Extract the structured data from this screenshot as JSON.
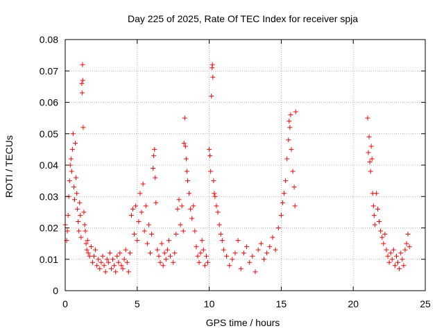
{
  "chart_data": {
    "type": "scatter",
    "title": "Day 225 of 2025, Rate Of TEC Index for receiver spja",
    "xlabel": "GPS time / hours",
    "ylabel": "ROTI / TECUs",
    "xlim": [
      0,
      25
    ],
    "ylim": [
      0,
      0.08
    ],
    "xticks": [
      0,
      5,
      10,
      15,
      20,
      25
    ],
    "xtick_labels": [
      "0",
      "5",
      "10",
      "15",
      "20",
      "25"
    ],
    "yticks": [
      0,
      0.01,
      0.02,
      0.03,
      0.04,
      0.05,
      0.06,
      0.07,
      0.08
    ],
    "ytick_labels": [
      "0",
      "0.01",
      "0.02",
      "0.03",
      "0.04",
      "0.05",
      "0.06",
      "0.07",
      "0.08"
    ],
    "grid": true,
    "marker": "+",
    "color": "#ff0000",
    "series": [
      {
        "name": "ROTI",
        "points": [
          [
            0.0,
            0.021
          ],
          [
            0.1,
            0.016
          ],
          [
            0.15,
            0.019
          ],
          [
            0.2,
            0.024
          ],
          [
            0.25,
            0.03
          ],
          [
            0.3,
            0.035
          ],
          [
            0.35,
            0.04
          ],
          [
            0.4,
            0.042
          ],
          [
            0.45,
            0.038
          ],
          [
            0.5,
            0.045
          ],
          [
            0.55,
            0.05
          ],
          [
            0.6,
            0.033
          ],
          [
            0.65,
            0.029
          ],
          [
            0.7,
            0.047
          ],
          [
            0.75,
            0.036
          ],
          [
            0.8,
            0.031
          ],
          [
            0.85,
            0.026
          ],
          [
            0.9,
            0.022
          ],
          [
            0.95,
            0.019
          ],
          [
            1.0,
            0.028
          ],
          [
            1.05,
            0.024
          ],
          [
            1.1,
            0.017
          ],
          [
            1.15,
            0.066
          ],
          [
            1.17,
            0.063
          ],
          [
            1.2,
            0.072
          ],
          [
            1.22,
            0.067
          ],
          [
            1.25,
            0.052
          ],
          [
            1.3,
            0.025
          ],
          [
            1.35,
            0.021
          ],
          [
            1.4,
            0.019
          ],
          [
            1.45,
            0.015
          ],
          [
            1.5,
            0.013
          ],
          [
            1.55,
            0.016
          ],
          [
            1.6,
            0.012
          ],
          [
            1.7,
            0.011
          ],
          [
            1.8,
            0.014
          ],
          [
            1.9,
            0.009
          ],
          [
            2.0,
            0.011
          ],
          [
            2.1,
            0.013
          ],
          [
            2.2,
            0.008
          ],
          [
            2.3,
            0.01
          ],
          [
            2.4,
            0.007
          ],
          [
            2.5,
            0.009
          ],
          [
            2.6,
            0.011
          ],
          [
            2.7,
            0.008
          ],
          [
            2.8,
            0.006
          ],
          [
            2.9,
            0.01
          ],
          [
            3.0,
            0.009
          ],
          [
            3.1,
            0.012
          ],
          [
            3.2,
            0.007
          ],
          [
            3.3,
            0.01
          ],
          [
            3.4,
            0.008
          ],
          [
            3.5,
            0.006
          ],
          [
            3.6,
            0.011
          ],
          [
            3.7,
            0.009
          ],
          [
            3.8,
            0.012
          ],
          [
            3.9,
            0.008
          ],
          [
            4.0,
            0.007
          ],
          [
            4.1,
            0.01
          ],
          [
            4.2,
            0.013
          ],
          [
            4.3,
            0.009
          ],
          [
            4.4,
            0.006
          ],
          [
            4.5,
            0.012
          ],
          [
            4.6,
            0.024
          ],
          [
            4.7,
            0.026
          ],
          [
            4.8,
            0.018
          ],
          [
            4.9,
            0.027
          ],
          [
            5.0,
            0.016
          ],
          [
            5.1,
            0.022
          ],
          [
            5.2,
            0.031
          ],
          [
            5.3,
            0.025
          ],
          [
            5.4,
            0.034
          ],
          [
            5.5,
            0.019
          ],
          [
            5.6,
            0.027
          ],
          [
            5.7,
            0.015
          ],
          [
            5.8,
            0.021
          ],
          [
            5.9,
            0.012
          ],
          [
            6.0,
            0.018
          ],
          [
            6.1,
            0.039
          ],
          [
            6.15,
            0.043
          ],
          [
            6.2,
            0.045
          ],
          [
            6.25,
            0.036
          ],
          [
            6.3,
            0.028
          ],
          [
            6.4,
            0.013
          ],
          [
            6.5,
            0.011
          ],
          [
            6.6,
            0.009
          ],
          [
            6.7,
            0.015
          ],
          [
            6.8,
            0.008
          ],
          [
            6.9,
            0.012
          ],
          [
            7.0,
            0.01
          ],
          [
            7.1,
            0.013
          ],
          [
            7.2,
            0.016
          ],
          [
            7.3,
            0.011
          ],
          [
            7.5,
            0.009
          ],
          [
            7.6,
            0.012
          ],
          [
            7.7,
            0.018
          ],
          [
            7.8,
            0.026
          ],
          [
            7.9,
            0.029
          ],
          [
            8.0,
            0.021
          ],
          [
            8.1,
            0.027
          ],
          [
            8.2,
            0.019
          ],
          [
            8.25,
            0.047
          ],
          [
            8.3,
            0.055
          ],
          [
            8.35,
            0.046
          ],
          [
            8.4,
            0.042
          ],
          [
            8.45,
            0.038
          ],
          [
            8.5,
            0.035
          ],
          [
            8.6,
            0.031
          ],
          [
            8.7,
            0.026
          ],
          [
            8.8,
            0.023
          ],
          [
            8.9,
            0.027
          ],
          [
            9.0,
            0.019
          ],
          [
            9.1,
            0.014
          ],
          [
            9.2,
            0.011
          ],
          [
            9.3,
            0.009
          ],
          [
            9.4,
            0.012
          ],
          [
            9.5,
            0.016
          ],
          [
            9.6,
            0.013
          ],
          [
            9.7,
            0.008
          ],
          [
            9.8,
            0.011
          ],
          [
            9.9,
            0.009
          ],
          [
            10.0,
            0.045
          ],
          [
            10.05,
            0.043
          ],
          [
            10.1,
            0.038
          ],
          [
            10.15,
            0.062
          ],
          [
            10.2,
            0.071
          ],
          [
            10.22,
            0.072
          ],
          [
            10.25,
            0.068
          ],
          [
            10.3,
            0.035
          ],
          [
            10.35,
            0.031
          ],
          [
            10.4,
            0.03
          ],
          [
            10.5,
            0.027
          ],
          [
            10.6,
            0.025
          ],
          [
            10.7,
            0.021
          ],
          [
            10.8,
            0.018
          ],
          [
            10.9,
            0.016
          ],
          [
            11.0,
            0.013
          ],
          [
            11.2,
            0.011
          ],
          [
            11.4,
            0.008
          ],
          [
            11.6,
            0.01
          ],
          [
            11.8,
            0.012
          ],
          [
            12.0,
            0.016
          ],
          [
            12.2,
            0.007
          ],
          [
            12.4,
            0.012
          ],
          [
            12.6,
            0.014
          ],
          [
            12.8,
            0.009
          ],
          [
            13.0,
            0.011
          ],
          [
            13.2,
            0.006
          ],
          [
            13.4,
            0.013
          ],
          [
            13.6,
            0.015
          ],
          [
            13.8,
            0.01
          ],
          [
            14.0,
            0.012
          ],
          [
            14.2,
            0.014
          ],
          [
            14.4,
            0.017
          ],
          [
            14.6,
            0.013
          ],
          [
            14.8,
            0.02
          ],
          [
            15.0,
            0.024
          ],
          [
            15.1,
            0.028
          ],
          [
            15.2,
            0.031
          ],
          [
            15.3,
            0.035
          ],
          [
            15.4,
            0.042
          ],
          [
            15.5,
            0.048
          ],
          [
            15.55,
            0.054
          ],
          [
            15.6,
            0.052
          ],
          [
            15.65,
            0.056
          ],
          [
            15.7,
            0.045
          ],
          [
            15.8,
            0.038
          ],
          [
            15.9,
            0.033
          ],
          [
            15.95,
            0.027
          ],
          [
            16.0,
            0.057
          ],
          [
            21.0,
            0.055
          ],
          [
            21.05,
            0.044
          ],
          [
            21.1,
            0.049
          ],
          [
            21.15,
            0.041
          ],
          [
            21.2,
            0.038
          ],
          [
            21.25,
            0.046
          ],
          [
            21.3,
            0.042
          ],
          [
            21.35,
            0.031
          ],
          [
            21.4,
            0.027
          ],
          [
            21.45,
            0.024
          ],
          [
            21.5,
            0.021
          ],
          [
            21.6,
            0.031
          ],
          [
            21.7,
            0.026
          ],
          [
            21.8,
            0.022
          ],
          [
            21.9,
            0.019
          ],
          [
            22.0,
            0.017
          ],
          [
            22.1,
            0.015
          ],
          [
            22.2,
            0.018
          ],
          [
            22.3,
            0.013
          ],
          [
            22.4,
            0.011
          ],
          [
            22.5,
            0.009
          ],
          [
            22.6,
            0.012
          ],
          [
            22.7,
            0.01
          ],
          [
            22.8,
            0.013
          ],
          [
            22.9,
            0.008
          ],
          [
            23.0,
            0.011
          ],
          [
            23.1,
            0.009
          ],
          [
            23.2,
            0.007
          ],
          [
            23.3,
            0.012
          ],
          [
            23.4,
            0.01
          ],
          [
            23.5,
            0.008
          ],
          [
            23.6,
            0.013
          ],
          [
            23.7,
            0.015
          ],
          [
            23.8,
            0.018
          ],
          [
            23.9,
            0.014
          ]
        ]
      }
    ]
  }
}
